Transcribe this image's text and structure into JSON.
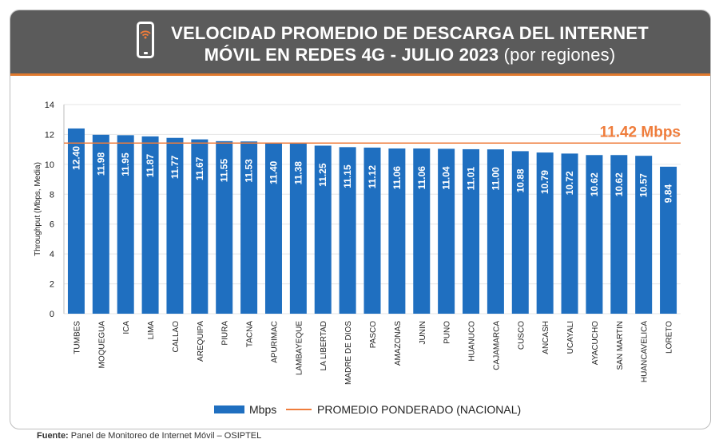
{
  "title_line1": "VELOCIDAD PROMEDIO DE DESCARGA DEL INTERNET",
  "title_line2": "MÓVIL EN REDES 4G - JULIO 2023",
  "title_suffix": "(por regiones)",
  "source_label": "Fuente:",
  "source_text": "Panel de Monitoreo de Internet Móvil – OSIPTEL",
  "chart_data": {
    "type": "bar",
    "ylabel": "Throughput (Mbps, Media)",
    "ylim": [
      0,
      14
    ],
    "yticks": [
      0,
      2,
      4,
      6,
      8,
      10,
      12,
      14
    ],
    "grid": true,
    "legend_placement": "bottom",
    "categories": [
      "TUMBES",
      "MOQUEGUA",
      "ICA",
      "LIMA",
      "CALLAO",
      "AREQUIPA",
      "PIURA",
      "TACNA",
      "APURIMAC",
      "LAMBAYEQUE",
      "LA LIBERTAD",
      "MADRE DE DIOS",
      "PASCO",
      "AMAZONAS",
      "JUNIN",
      "PUNO",
      "HUANUCO",
      "CAJAMARCA",
      "CUSCO",
      "ANCASH",
      "UCAYALI",
      "AYACUCHO",
      "SAN MARTIN",
      "HUANCAVELICA",
      "LORETO"
    ],
    "series": [
      {
        "name": "Mbps",
        "color": "#1f6fc0",
        "values": [
          12.4,
          11.98,
          11.95,
          11.87,
          11.77,
          11.67,
          11.55,
          11.53,
          11.4,
          11.38,
          11.25,
          11.15,
          11.12,
          11.06,
          11.06,
          11.04,
          11.01,
          11.0,
          10.88,
          10.79,
          10.72,
          10.62,
          10.62,
          10.57,
          9.84
        ],
        "labels": [
          "12.40",
          "11.98",
          "11.95",
          "11.87",
          "11.77",
          "11.67",
          "11.55",
          "11.53",
          "11.40",
          "11.38",
          "11.25",
          "11.15",
          "11.12",
          "11.06",
          "11.06",
          "11.04",
          "11.01",
          "11.00",
          "10.88",
          "10.79",
          "10.72",
          "10.62",
          "10.62",
          "10.57",
          "9.84"
        ]
      }
    ],
    "reference_line": {
      "name": "PROMEDIO PONDERADO (NACIONAL)",
      "value": 11.42,
      "label": "11.42 Mbps",
      "color": "#ef7d3c"
    }
  }
}
